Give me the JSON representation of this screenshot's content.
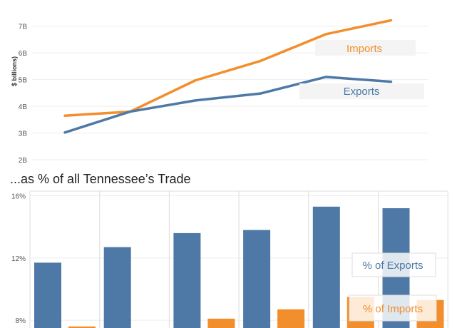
{
  "chart_data": [
    {
      "type": "line",
      "ylabel": "$ billions)",
      "y_ticks": [
        "2B",
        "3B",
        "4B",
        "5B",
        "6B",
        "7B"
      ],
      "ylim": [
        2,
        7.5
      ],
      "x_count": 6,
      "grid": true,
      "series": [
        {
          "name": "Imports",
          "color": "#f28e2b",
          "values": [
            3.65,
            3.8,
            4.97,
            5.7,
            6.7,
            7.22
          ]
        },
        {
          "name": "Exports",
          "color": "#4e79a7",
          "values": [
            3.02,
            3.8,
            4.22,
            4.48,
            5.1,
            4.92
          ]
        }
      ]
    },
    {
      "type": "bar",
      "title": "...as % of all Tennessee’s Trade",
      "y_ticks": [
        "8%",
        "12%",
        "16%"
      ],
      "ylim": [
        7.5,
        16.3
      ],
      "group_count": 6,
      "grid": true,
      "series": [
        {
          "name": "% of Exports",
          "color": "#4e79a7",
          "values": [
            11.7,
            12.7,
            13.6,
            13.8,
            15.3,
            15.2
          ]
        },
        {
          "name": "% of Imports",
          "color": "#f28e2b",
          "values": [
            7.6,
            null,
            8.1,
            8.7,
            9.5,
            9.3
          ]
        }
      ]
    }
  ]
}
